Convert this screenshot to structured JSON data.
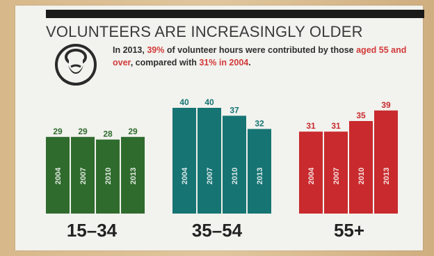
{
  "header": {
    "title": "VOLUNTEERS ARE INCREASINGLY OLDER"
  },
  "note": {
    "p1": "In 2013, ",
    "h1": "39%",
    "p2": " of volunteer hours were contributed by those ",
    "h2": "aged 55 and over",
    "p3": ", compared with ",
    "h3": "31% in 2004",
    "p4": "."
  },
  "icons": {
    "avatar": "older-person-icon"
  },
  "chart_data": {
    "type": "bar",
    "title": "VOLUNTEERS ARE INCREASINGLY OLDER",
    "xlabel": "",
    "ylabel": "",
    "ylim": [
      0,
      45
    ],
    "grid": false,
    "legend": "none",
    "groups": [
      {
        "label": "15–34",
        "color": "#2f6b2d",
        "years": [
          "2004",
          "2007",
          "2010",
          "2013"
        ],
        "values": [
          29,
          29,
          28,
          29
        ]
      },
      {
        "label": "35–54",
        "color": "#167473",
        "years": [
          "2004",
          "2007",
          "2010",
          "2013"
        ],
        "values": [
          40,
          40,
          37,
          32
        ]
      },
      {
        "label": "55+",
        "color": "#c92a2d",
        "years": [
          "2004",
          "2007",
          "2010",
          "2013"
        ],
        "values": [
          31,
          31,
          35,
          39
        ]
      }
    ]
  }
}
